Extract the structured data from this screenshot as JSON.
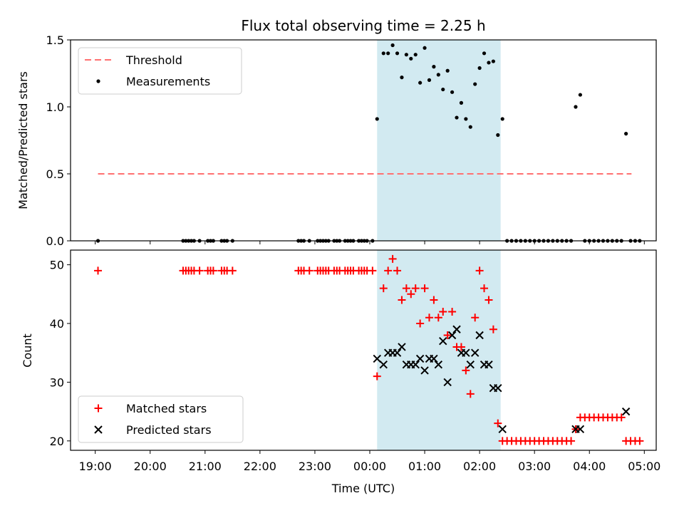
{
  "chart_data": {
    "title": "Flux total observing time = 2.25 h",
    "shaded_interval": {
      "start": "00:08",
      "end": "02:23",
      "color": "#add8e6"
    },
    "x_axis": {
      "label": "Time (UTC)",
      "range": [
        "18:33",
        "05:13"
      ],
      "ticks": [
        "19:00",
        "20:00",
        "21:00",
        "22:00",
        "23:00",
        "00:00",
        "01:00",
        "02:00",
        "03:00",
        "04:00",
        "05:00"
      ]
    },
    "panels": [
      {
        "type": "scatter",
        "ylabel": "Matched/Predicted stars",
        "ylim": [
          0,
          1.5
        ],
        "yticks": [
          "0.0",
          "0.5",
          "1.0",
          "1.5"
        ],
        "legend": {
          "placement": "top-left",
          "entries": [
            "Threshold",
            "Measurements"
          ]
        },
        "series": [
          {
            "name": "Threshold",
            "kind": "dashed-line",
            "color": "#ff7070",
            "points": [
              [
                "19:03",
                0.5
              ],
              [
                "04:46",
                0.5
              ]
            ]
          },
          {
            "name": "Measurements",
            "kind": "dot",
            "color": "#000000",
            "points": [
              [
                "19:03",
                0
              ],
              [
                "20:36",
                0
              ],
              [
                "20:39",
                0
              ],
              [
                "20:42",
                0
              ],
              [
                "20:45",
                0
              ],
              [
                "20:48",
                0
              ],
              [
                "20:54",
                0
              ],
              [
                "21:03",
                0
              ],
              [
                "21:06",
                0
              ],
              [
                "21:09",
                0
              ],
              [
                "21:18",
                0
              ],
              [
                "21:21",
                0
              ],
              [
                "21:24",
                0
              ],
              [
                "21:30",
                0
              ],
              [
                "22:42",
                0
              ],
              [
                "22:45",
                0
              ],
              [
                "22:48",
                0
              ],
              [
                "22:54",
                0
              ],
              [
                "23:03",
                0
              ],
              [
                "23:06",
                0
              ],
              [
                "23:09",
                0
              ],
              [
                "23:12",
                0
              ],
              [
                "23:15",
                0
              ],
              [
                "23:21",
                0
              ],
              [
                "23:24",
                0
              ],
              [
                "23:27",
                0
              ],
              [
                "23:33",
                0
              ],
              [
                "23:36",
                0
              ],
              [
                "23:39",
                0
              ],
              [
                "23:42",
                0
              ],
              [
                "23:48",
                0
              ],
              [
                "23:51",
                0
              ],
              [
                "23:54",
                0
              ],
              [
                "23:57",
                0
              ],
              [
                "00:03",
                0
              ],
              [
                "00:08",
                0.91
              ],
              [
                "00:15",
                1.4
              ],
              [
                "00:20",
                1.4
              ],
              [
                "00:25",
                1.46
              ],
              [
                "00:30",
                1.4
              ],
              [
                "00:35",
                1.22
              ],
              [
                "00:40",
                1.39
              ],
              [
                "00:45",
                1.36
              ],
              [
                "00:50",
                1.39
              ],
              [
                "00:55",
                1.18
              ],
              [
                "01:00",
                1.44
              ],
              [
                "01:05",
                1.2
              ],
              [
                "01:10",
                1.3
              ],
              [
                "01:15",
                1.24
              ],
              [
                "01:20",
                1.13
              ],
              [
                "01:25",
                1.27
              ],
              [
                "01:30",
                1.11
              ],
              [
                "01:35",
                0.92
              ],
              [
                "01:40",
                1.03
              ],
              [
                "01:45",
                0.91
              ],
              [
                "01:50",
                0.85
              ],
              [
                "01:55",
                1.17
              ],
              [
                "02:00",
                1.29
              ],
              [
                "02:05",
                1.4
              ],
              [
                "02:10",
                1.33
              ],
              [
                "02:15",
                1.34
              ],
              [
                "02:20",
                0.79
              ],
              [
                "02:25",
                0.91
              ],
              [
                "02:30",
                0
              ],
              [
                "02:35",
                0
              ],
              [
                "02:40",
                0
              ],
              [
                "02:45",
                0
              ],
              [
                "02:50",
                0
              ],
              [
                "02:55",
                0
              ],
              [
                "03:00",
                0
              ],
              [
                "03:05",
                0
              ],
              [
                "03:10",
                0
              ],
              [
                "03:15",
                0
              ],
              [
                "03:20",
                0
              ],
              [
                "03:25",
                0
              ],
              [
                "03:30",
                0
              ],
              [
                "03:35",
                0
              ],
              [
                "03:40",
                0
              ],
              [
                "03:45",
                1.0
              ],
              [
                "03:50",
                1.09
              ],
              [
                "03:55",
                0
              ],
              [
                "04:00",
                0
              ],
              [
                "04:05",
                0
              ],
              [
                "04:10",
                0
              ],
              [
                "04:15",
                0
              ],
              [
                "04:20",
                0
              ],
              [
                "04:25",
                0
              ],
              [
                "04:30",
                0
              ],
              [
                "04:35",
                0
              ],
              [
                "04:40",
                0.8
              ],
              [
                "04:45",
                0
              ],
              [
                "04:50",
                0
              ],
              [
                "04:55",
                0
              ]
            ]
          }
        ]
      },
      {
        "type": "scatter",
        "ylabel": "Count",
        "ylim": [
          18.4,
          52.5
        ],
        "yticks": [
          "20",
          "30",
          "40",
          "50"
        ],
        "legend": {
          "placement": "bottom-left",
          "entries": [
            "Matched stars",
            "Predicted stars"
          ]
        },
        "series": [
          {
            "name": "Matched stars",
            "kind": "plus",
            "color": "#ff0000",
            "points": [
              [
                "19:03",
                49
              ],
              [
                "20:36",
                49
              ],
              [
                "20:39",
                49
              ],
              [
                "20:42",
                49
              ],
              [
                "20:45",
                49
              ],
              [
                "20:48",
                49
              ],
              [
                "20:54",
                49
              ],
              [
                "21:03",
                49
              ],
              [
                "21:06",
                49
              ],
              [
                "21:09",
                49
              ],
              [
                "21:18",
                49
              ],
              [
                "21:21",
                49
              ],
              [
                "21:24",
                49
              ],
              [
                "21:30",
                49
              ],
              [
                "22:42",
                49
              ],
              [
                "22:45",
                49
              ],
              [
                "22:48",
                49
              ],
              [
                "22:54",
                49
              ],
              [
                "23:03",
                49
              ],
              [
                "23:06",
                49
              ],
              [
                "23:09",
                49
              ],
              [
                "23:12",
                49
              ],
              [
                "23:15",
                49
              ],
              [
                "23:21",
                49
              ],
              [
                "23:24",
                49
              ],
              [
                "23:27",
                49
              ],
              [
                "23:33",
                49
              ],
              [
                "23:36",
                49
              ],
              [
                "23:39",
                49
              ],
              [
                "23:42",
                49
              ],
              [
                "23:48",
                49
              ],
              [
                "23:51",
                49
              ],
              [
                "23:54",
                49
              ],
              [
                "23:57",
                49
              ],
              [
                "00:03",
                49
              ],
              [
                "00:08",
                31
              ],
              [
                "00:15",
                46
              ],
              [
                "00:20",
                49
              ],
              [
                "00:25",
                51
              ],
              [
                "00:30",
                49
              ],
              [
                "00:35",
                44
              ],
              [
                "00:40",
                46
              ],
              [
                "00:45",
                45
              ],
              [
                "00:50",
                46
              ],
              [
                "00:55",
                40
              ],
              [
                "01:00",
                46
              ],
              [
                "01:05",
                41
              ],
              [
                "01:10",
                44
              ],
              [
                "01:15",
                41
              ],
              [
                "01:20",
                42
              ],
              [
                "01:25",
                38
              ],
              [
                "01:30",
                42
              ],
              [
                "01:35",
                36
              ],
              [
                "01:40",
                36
              ],
              [
                "01:45",
                32
              ],
              [
                "01:50",
                28
              ],
              [
                "01:55",
                41
              ],
              [
                "02:00",
                49
              ],
              [
                "02:05",
                46
              ],
              [
                "02:10",
                44
              ],
              [
                "02:15",
                39
              ],
              [
                "02:20",
                23
              ],
              [
                "02:25",
                20
              ],
              [
                "02:30",
                20
              ],
              [
                "02:35",
                20
              ],
              [
                "02:40",
                20
              ],
              [
                "02:45",
                20
              ],
              [
                "02:50",
                20
              ],
              [
                "02:55",
                20
              ],
              [
                "03:00",
                20
              ],
              [
                "03:05",
                20
              ],
              [
                "03:10",
                20
              ],
              [
                "03:15",
                20
              ],
              [
                "03:20",
                20
              ],
              [
                "03:25",
                20
              ],
              [
                "03:30",
                20
              ],
              [
                "03:35",
                20
              ],
              [
                "03:40",
                20
              ],
              [
                "03:45",
                22
              ],
              [
                "03:50",
                24
              ],
              [
                "03:55",
                24
              ],
              [
                "04:00",
                24
              ],
              [
                "04:05",
                24
              ],
              [
                "04:10",
                24
              ],
              [
                "04:15",
                24
              ],
              [
                "04:20",
                24
              ],
              [
                "04:25",
                24
              ],
              [
                "04:30",
                24
              ],
              [
                "04:35",
                24
              ],
              [
                "04:40",
                20
              ],
              [
                "04:45",
                20
              ],
              [
                "04:50",
                20
              ],
              [
                "04:55",
                20
              ]
            ]
          },
          {
            "name": "Predicted stars",
            "kind": "x",
            "color": "#000000",
            "points": [
              [
                "00:08",
                34
              ],
              [
                "00:15",
                33
              ],
              [
                "00:20",
                35
              ],
              [
                "00:25",
                35
              ],
              [
                "00:30",
                35
              ],
              [
                "00:35",
                36
              ],
              [
                "00:40",
                33
              ],
              [
                "00:45",
                33
              ],
              [
                "00:50",
                33
              ],
              [
                "00:55",
                34
              ],
              [
                "01:00",
                32
              ],
              [
                "01:05",
                34
              ],
              [
                "01:10",
                34
              ],
              [
                "01:15",
                33
              ],
              [
                "01:20",
                37
              ],
              [
                "01:25",
                30
              ],
              [
                "01:30",
                38
              ],
              [
                "01:35",
                39
              ],
              [
                "01:40",
                35
              ],
              [
                "01:45",
                35
              ],
              [
                "01:50",
                33
              ],
              [
                "01:55",
                35
              ],
              [
                "02:00",
                38
              ],
              [
                "02:05",
                33
              ],
              [
                "02:10",
                33
              ],
              [
                "02:15",
                29
              ],
              [
                "02:20",
                29
              ],
              [
                "02:25",
                22
              ],
              [
                "03:45",
                22
              ],
              [
                "03:50",
                22
              ],
              [
                "04:40",
                25
              ]
            ]
          }
        ]
      }
    ]
  }
}
